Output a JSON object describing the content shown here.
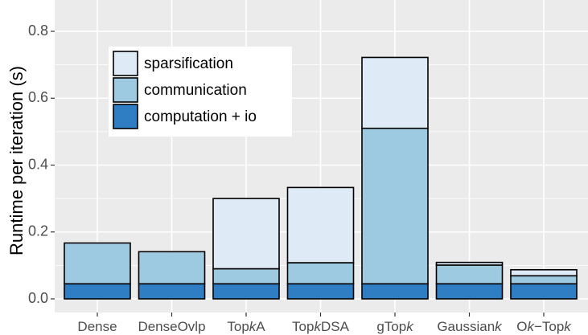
{
  "chart_data": {
    "type": "bar",
    "stacked": true,
    "categories": [
      {
        "label": "Dense",
        "italic": ""
      },
      {
        "label": "DenseOvlp",
        "italic": ""
      },
      {
        "label": "TopkA",
        "italic": "k"
      },
      {
        "label": "TopkDSA",
        "italic": "k"
      },
      {
        "label": "gTopk",
        "italic": "k"
      },
      {
        "label": "Gaussiank",
        "italic": "k"
      },
      {
        "label": "Ok−Topk",
        "italic": "k"
      }
    ],
    "series": [
      {
        "name": "computation + io",
        "color": "#2f7dc2",
        "values": [
          0.045,
          0.045,
          0.045,
          0.045,
          0.045,
          0.045,
          0.045
        ]
      },
      {
        "name": "communication",
        "color": "#9ecae1",
        "values": [
          0.122,
          0.096,
          0.045,
          0.063,
          0.465,
          0.056,
          0.024
        ]
      },
      {
        "name": "sparsification",
        "color": "#deebf7",
        "values": [
          0.0,
          0.0,
          0.21,
          0.225,
          0.212,
          0.008,
          0.018
        ]
      }
    ],
    "xlabel": "",
    "ylabel": "Runtime per iteration (s)",
    "ylim": [
      0,
      0.86
    ],
    "yticks": [
      0.0,
      0.2,
      0.4,
      0.6,
      0.8
    ],
    "ytick_labels": [
      "0.0",
      "0.2",
      "0.4",
      "0.6",
      "0.8"
    ],
    "grid": true,
    "legend_position": "top-left",
    "legend_order": [
      "sparsification",
      "communication",
      "computation + io"
    ],
    "panel_color": "#ebebeb",
    "grid_color": "#ffffff"
  }
}
